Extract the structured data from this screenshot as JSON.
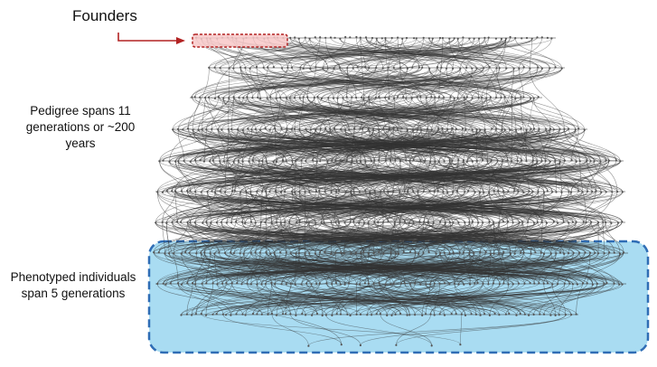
{
  "labels": {
    "founders": "Founders",
    "pedigree_line1": "Pedigree spans 11",
    "pedigree_line2": "generations or ~200",
    "pedigree_line3": "years",
    "phenotyped_line1": "Phenotyped individuals",
    "phenotyped_line2": "span 5 generations"
  },
  "colors": {
    "founders_accent": "#b22222",
    "founders_fill": "#f8c8c8",
    "phenotyped_border": "#2f6db5",
    "phenotyped_fill": "#a9dcf2",
    "pedigree_edges": "#333333"
  },
  "pedigree": {
    "generations": 11,
    "phenotyped_generations": 5
  }
}
